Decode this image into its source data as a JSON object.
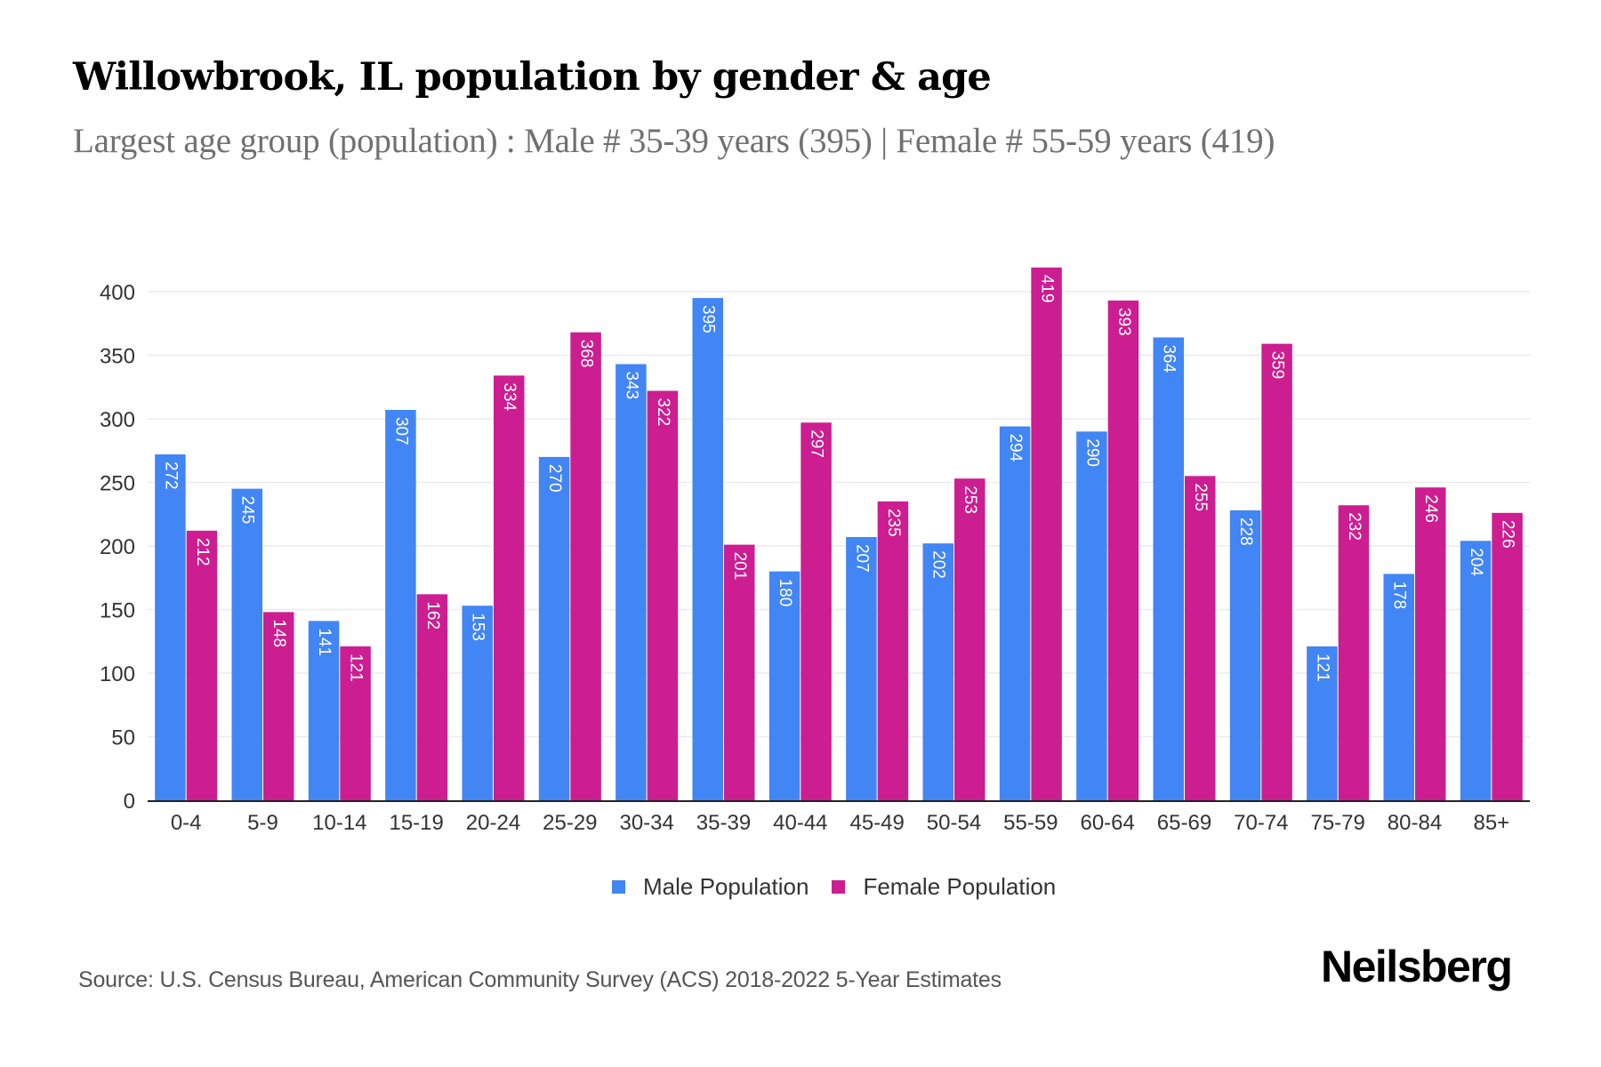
{
  "header": {
    "title": "Willowbrook, IL population by gender & age",
    "subtitle": "Largest age group (population) : Male # 35-39 years (395) | Female # 55-59 years (419)"
  },
  "footer": {
    "source": "Source: U.S. Census Bureau, American Community Survey (ACS) 2018-2022 5-Year Estimates",
    "brand": "Neilsberg"
  },
  "chart_data": {
    "type": "bar",
    "title": "Willowbrook, IL population by gender & age",
    "subtitle": "Largest age group (population) : Male # 35-39 years (395) | Female # 55-59 years (419)",
    "xlabel": "",
    "ylabel": "",
    "ylim": [
      0,
      420
    ],
    "yticks": [
      0,
      50,
      100,
      150,
      200,
      250,
      300,
      350,
      400
    ],
    "grid": true,
    "legend_position": "bottom-center",
    "data_labels": "inside-top-rotated",
    "categories": [
      "0-4",
      "5-9",
      "10-14",
      "15-19",
      "20-24",
      "25-29",
      "30-34",
      "35-39",
      "40-44",
      "45-49",
      "50-54",
      "55-59",
      "60-64",
      "65-69",
      "70-74",
      "75-79",
      "80-84",
      "85+"
    ],
    "series": [
      {
        "name": "Male Population",
        "color": "#4285f4",
        "values": [
          272,
          245,
          141,
          307,
          153,
          270,
          343,
          395,
          180,
          207,
          202,
          294,
          290,
          364,
          228,
          121,
          178,
          204
        ]
      },
      {
        "name": "Female Population",
        "color": "#cc1e90",
        "values": [
          212,
          148,
          121,
          162,
          334,
          368,
          322,
          201,
          297,
          235,
          253,
          419,
          393,
          255,
          359,
          232,
          246,
          226
        ]
      }
    ]
  }
}
